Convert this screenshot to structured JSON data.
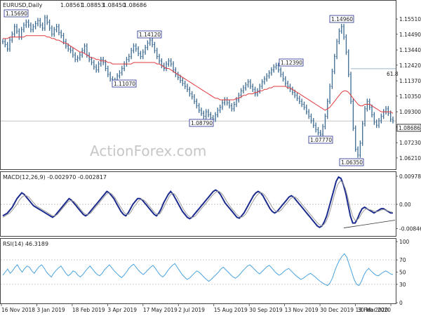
{
  "chart_data": [
    {
      "type": "line",
      "panel": "price",
      "title": "EURUSD,Daily",
      "ohlc": {
        "open": "1.08561",
        "high": "1.08853",
        "low": "1.08450",
        "close": "1.08686"
      },
      "current_price": "1.08686",
      "fib_label": "61.8",
      "fib_level": 1.1218,
      "ylim": [
        1.055,
        1.165
      ],
      "y_ticks": [
        "1.15510",
        "1.14490",
        "1.13440",
        "1.12420",
        "1.11370",
        "1.10350",
        "1.09300",
        "1.08280",
        "1.07230",
        "1.06210"
      ],
      "x_ticks": [
        "16 Nov 2018",
        "3 Jan 2019",
        "18 Feb 2019",
        "3 Apr 2019",
        "17 May 2019",
        "2 Jul 2019",
        "15 Aug 2019",
        "30 Sep 2019",
        "13 Nov 2019",
        "30 Dec 2019",
        "13 Feb 2020",
        "30 Mar 2020"
      ],
      "annotations": [
        {
          "label": "1.15690",
          "value": 1.1569
        },
        {
          "label": "1.14120",
          "value": 1.1412
        },
        {
          "label": "1.11070",
          "value": 1.1107
        },
        {
          "label": "1.08790",
          "value": 1.0879
        },
        {
          "label": "1.12390",
          "value": 1.1239
        },
        {
          "label": "1.07770",
          "value": 1.0777
        },
        {
          "label": "1.14960",
          "value": 1.1496
        },
        {
          "label": "1.06350",
          "value": 1.0635
        }
      ],
      "series": [
        {
          "name": "",
          "color": "#3d6a8f",
          "values": [
            1.14,
            1.138,
            1.135,
            1.141,
            1.145,
            1.15,
            1.147,
            1.143,
            1.148,
            1.151,
            1.153,
            1.151,
            1.148,
            1.15,
            1.152,
            1.154,
            1.151,
            1.149,
            1.156,
            1.153,
            1.149,
            1.145,
            1.148,
            1.15,
            1.146,
            1.144,
            1.14,
            1.137,
            1.135,
            1.134,
            1.131,
            1.128,
            1.129,
            1.131,
            1.134,
            1.137,
            1.131,
            1.128,
            1.126,
            1.123,
            1.121,
            1.125,
            1.128,
            1.126,
            1.122,
            1.118,
            1.115,
            1.113,
            1.114,
            1.117,
            1.119,
            1.122,
            1.125,
            1.128,
            1.13,
            1.134,
            1.137,
            1.135,
            1.132,
            1.13,
            1.133,
            1.136,
            1.139,
            1.141,
            1.138,
            1.134,
            1.13,
            1.127,
            1.124,
            1.122,
            1.125,
            1.127,
            1.125,
            1.121,
            1.118,
            1.116,
            1.114,
            1.112,
            1.11,
            1.108,
            1.105,
            1.103,
            1.1,
            1.097,
            1.094,
            1.092,
            1.09,
            1.093,
            1.091,
            1.089,
            1.088,
            1.091,
            1.094,
            1.096,
            1.099,
            1.101,
            1.099,
            1.097,
            1.095,
            1.098,
            1.101,
            1.104,
            1.107,
            1.109,
            1.111,
            1.113,
            1.11,
            1.108,
            1.105,
            1.107,
            1.11,
            1.113,
            1.115,
            1.117,
            1.119,
            1.121,
            1.123,
            1.124,
            1.121,
            1.118,
            1.115,
            1.112,
            1.11,
            1.108,
            1.106,
            1.104,
            1.102,
            1.1,
            1.098,
            1.096,
            1.093,
            1.09,
            1.087,
            1.084,
            1.081,
            1.079,
            1.078,
            1.083,
            1.09,
            1.1,
            1.11,
            1.12,
            1.13,
            1.14,
            1.147,
            1.15,
            1.143,
            1.133,
            1.118,
            1.1,
            1.082,
            1.068,
            1.064,
            1.072,
            1.085,
            1.095,
            1.1,
            1.096,
            1.091,
            1.086,
            1.084,
            1.087,
            1.09,
            1.093,
            1.095,
            1.092,
            1.088,
            1.087
          ]
        },
        {
          "name": "",
          "color": "#e0393e",
          "values": [
            1.142,
            1.142,
            1.142,
            1.143,
            1.143,
            1.143,
            1.143,
            1.143,
            1.143,
            1.143,
            1.144,
            1.144,
            1.144,
            1.144,
            1.144,
            1.144,
            1.144,
            1.144,
            1.144,
            1.143,
            1.143,
            1.142,
            1.142,
            1.141,
            1.141,
            1.14,
            1.139,
            1.139,
            1.138,
            1.137,
            1.136,
            1.135,
            1.134,
            1.133,
            1.133,
            1.132,
            1.131,
            1.13,
            1.129,
            1.129,
            1.128,
            1.128,
            1.127,
            1.127,
            1.127,
            1.126,
            1.126,
            1.125,
            1.125,
            1.125,
            1.125,
            1.125,
            1.125,
            1.125,
            1.125,
            1.125,
            1.126,
            1.126,
            1.126,
            1.126,
            1.126,
            1.126,
            1.126,
            1.126,
            1.126,
            1.126,
            1.125,
            1.125,
            1.124,
            1.123,
            1.122,
            1.122,
            1.121,
            1.12,
            1.119,
            1.118,
            1.117,
            1.116,
            1.115,
            1.114,
            1.113,
            1.112,
            1.111,
            1.11,
            1.109,
            1.108,
            1.107,
            1.106,
            1.105,
            1.104,
            1.103,
            1.102,
            1.102,
            1.101,
            1.101,
            1.101,
            1.101,
            1.101,
            1.101,
            1.101,
            1.102,
            1.102,
            1.103,
            1.104,
            1.104,
            1.105,
            1.105,
            1.105,
            1.106,
            1.106,
            1.107,
            1.107,
            1.108,
            1.108,
            1.109,
            1.109,
            1.11,
            1.11,
            1.11,
            1.11,
            1.11,
            1.11,
            1.109,
            1.109,
            1.108,
            1.107,
            1.106,
            1.105,
            1.104,
            1.103,
            1.102,
            1.101,
            1.1,
            1.099,
            1.098,
            1.097,
            1.096,
            1.095,
            1.094,
            1.095,
            1.096,
            1.098,
            1.1,
            1.102,
            1.104,
            1.106,
            1.107,
            1.107,
            1.106,
            1.104,
            1.102,
            1.1,
            1.098,
            1.097,
            1.097,
            1.098,
            1.098,
            1.098,
            1.097,
            1.096,
            1.095,
            1.094,
            1.093,
            1.093,
            1.093,
            1.093,
            1.093,
            1.092
          ]
        }
      ]
    },
    {
      "type": "line",
      "panel": "macd",
      "title": "MACD(12,26,9) -0.002970 -0.002817",
      "y_ticks": [
        "0.00978",
        "0.00",
        "-0.008464"
      ],
      "ylim": [
        -0.0105,
        0.0105
      ],
      "series": [
        {
          "name": "",
          "color": "#1c2b8e",
          "values": [
            -0.004,
            -0.0035,
            -0.003,
            -0.002,
            -0.001,
            0.0005,
            0.002,
            0.003,
            0.004,
            0.0035,
            0.0025,
            0.0015,
            0.0005,
            -0.0005,
            -0.001,
            -0.0015,
            -0.002,
            -0.0025,
            -0.003,
            -0.0035,
            -0.004,
            -0.0045,
            -0.004,
            -0.003,
            -0.002,
            -0.001,
            0.0,
            0.001,
            0.002,
            0.0015,
            0.0005,
            -0.0005,
            -0.0015,
            -0.0025,
            -0.0035,
            -0.004,
            -0.0035,
            -0.0025,
            -0.0015,
            -0.0005,
            0.0005,
            0.0015,
            0.0025,
            0.0035,
            0.0045,
            0.004,
            0.003,
            0.002,
            0.0005,
            -0.001,
            -0.0025,
            -0.0035,
            -0.004,
            -0.003,
            -0.0015,
            0.0,
            0.001,
            0.002,
            0.002,
            0.0015,
            0.0005,
            -0.0005,
            -0.0015,
            -0.0025,
            -0.0035,
            -0.004,
            -0.003,
            -0.0015,
            0.0005,
            0.002,
            0.0035,
            0.0045,
            0.0035,
            0.002,
            0.0005,
            -0.001,
            -0.0025,
            -0.0035,
            -0.0045,
            -0.005,
            -0.0045,
            -0.0035,
            -0.0025,
            -0.0015,
            -0.0005,
            0.0005,
            0.0015,
            0.0025,
            0.0035,
            0.0045,
            0.005,
            0.0045,
            0.0035,
            0.002,
            0.0005,
            -0.0005,
            -0.0015,
            -0.0025,
            -0.0035,
            -0.0045,
            -0.0048,
            -0.004,
            -0.003,
            -0.0015,
            0.0,
            0.0015,
            0.003,
            0.004,
            0.0045,
            0.004,
            0.003,
            0.0015,
            0.0,
            -0.0015,
            -0.0025,
            -0.003,
            -0.0025,
            -0.0015,
            -0.0005,
            0.0005,
            0.0015,
            0.0025,
            0.003,
            0.0025,
            0.0015,
            0.0005,
            -0.0005,
            -0.0015,
            -0.0025,
            -0.0035,
            -0.0045,
            -0.0055,
            -0.0065,
            -0.0075,
            -0.008,
            -0.0075,
            -0.006,
            -0.004,
            -0.001,
            0.002,
            0.005,
            0.008,
            0.0095,
            0.009,
            0.007,
            0.004,
            0.0,
            -0.004,
            -0.0065,
            -0.0065,
            -0.005,
            -0.003,
            -0.0015,
            -0.001,
            -0.0015,
            -0.002,
            -0.0025,
            -0.003,
            -0.0025,
            -0.002,
            -0.0015,
            -0.0015,
            -0.002,
            -0.0025,
            -0.003,
            -0.003
          ]
        },
        {
          "name": "",
          "color": "#9a9a9a",
          "values": [
            -0.0045,
            -0.004,
            -0.0035,
            -0.003,
            -0.002,
            -0.001,
            0.0,
            0.0015,
            0.0025,
            0.003,
            0.003,
            0.0025,
            0.0015,
            0.0005,
            -0.0005,
            -0.001,
            -0.0015,
            -0.002,
            -0.0025,
            -0.003,
            -0.0035,
            -0.004,
            -0.004,
            -0.0035,
            -0.0025,
            -0.0015,
            -0.0005,
            0.0005,
            0.0012,
            0.0013,
            0.001,
            0.0,
            -0.001,
            -0.002,
            -0.003,
            -0.0035,
            -0.0035,
            -0.003,
            -0.002,
            -0.001,
            0.0,
            0.001,
            0.002,
            0.003,
            0.0038,
            0.004,
            0.0035,
            0.0025,
            0.0012,
            -0.0003,
            -0.0015,
            -0.0028,
            -0.0035,
            -0.0035,
            -0.0025,
            -0.001,
            0.0,
            0.0012,
            0.0017,
            0.0016,
            0.001,
            0.0,
            -0.001,
            -0.002,
            -0.003,
            -0.0035,
            -0.0033,
            -0.002,
            -0.0005,
            0.0012,
            0.0028,
            0.0038,
            0.0037,
            0.0028,
            0.0013,
            -0.0003,
            -0.0018,
            -0.003,
            -0.004,
            -0.0045,
            -0.0045,
            -0.004,
            -0.003,
            -0.002,
            -0.001,
            0.0,
            0.001,
            0.002,
            0.003,
            0.0038,
            0.0045,
            0.0045,
            0.0038,
            0.0027,
            0.0012,
            0.0,
            -0.0012,
            -0.0022,
            -0.0032,
            -0.004,
            -0.0045,
            -0.0043,
            -0.0035,
            -0.0022,
            -0.0007,
            0.0008,
            0.0022,
            0.0033,
            0.004,
            0.004,
            0.0033,
            0.0022,
            0.0008,
            -0.0007,
            -0.0018,
            -0.0025,
            -0.0026,
            -0.002,
            -0.001,
            0.0,
            0.001,
            0.002,
            0.0025,
            0.0025,
            0.0018,
            0.0008,
            -0.0002,
            -0.0012,
            -0.0022,
            -0.0032,
            -0.0042,
            -0.0052,
            -0.0062,
            -0.007,
            -0.0075,
            -0.007,
            -0.0058,
            -0.0038,
            -0.001,
            0.002,
            0.005,
            0.0072,
            0.0082,
            0.0075,
            0.0055,
            0.0025,
            -0.001,
            -0.004,
            -0.0055,
            -0.0055,
            -0.0045,
            -0.003,
            -0.002,
            -0.0015,
            -0.0018,
            -0.002,
            -0.0024,
            -0.0026,
            -0.0024,
            -0.002,
            -0.0018,
            -0.002,
            -0.0023,
            -0.0026,
            -0.0028
          ]
        }
      ]
    },
    {
      "type": "line",
      "panel": "rsi",
      "title": "RSI(14) 46.3189",
      "y_ticks": [
        "100",
        "70",
        "50",
        "30",
        "0"
      ],
      "ylim": [
        0,
        100
      ],
      "series": [
        {
          "name": "",
          "color": "#4aa3df",
          "values": [
            45,
            50,
            55,
            48,
            52,
            58,
            62,
            55,
            50,
            56,
            60,
            58,
            52,
            48,
            54,
            59,
            62,
            57,
            50,
            46,
            42,
            48,
            53,
            57,
            60,
            54,
            48,
            44,
            47,
            52,
            50,
            45,
            42,
            46,
            51,
            56,
            60,
            55,
            50,
            46,
            44,
            48,
            54,
            58,
            62,
            57,
            52,
            48,
            44,
            41,
            45,
            50,
            56,
            60,
            63,
            58,
            53,
            49,
            46,
            50,
            54,
            58,
            61,
            56,
            50,
            45,
            42,
            46,
            52,
            57,
            61,
            64,
            58,
            52,
            46,
            42,
            38,
            40,
            44,
            48,
            52,
            50,
            46,
            42,
            38,
            35,
            38,
            42,
            46,
            50,
            55,
            58,
            54,
            50,
            46,
            42,
            40,
            43,
            47,
            52,
            56,
            60,
            62,
            58,
            54,
            50,
            47,
            51,
            55,
            59,
            61,
            57,
            52,
            48,
            45,
            47,
            51,
            54,
            56,
            52,
            48,
            44,
            41,
            38,
            40,
            43,
            46,
            48,
            45,
            42,
            38,
            35,
            32,
            30,
            28,
            32,
            40,
            52,
            62,
            70,
            76,
            80,
            74,
            62,
            50,
            38,
            30,
            28,
            35,
            45,
            52,
            56,
            52,
            48,
            45,
            44,
            47,
            50,
            52,
            50,
            47,
            46
          ]
        }
      ]
    }
  ],
  "watermark": "ActionForex.com"
}
